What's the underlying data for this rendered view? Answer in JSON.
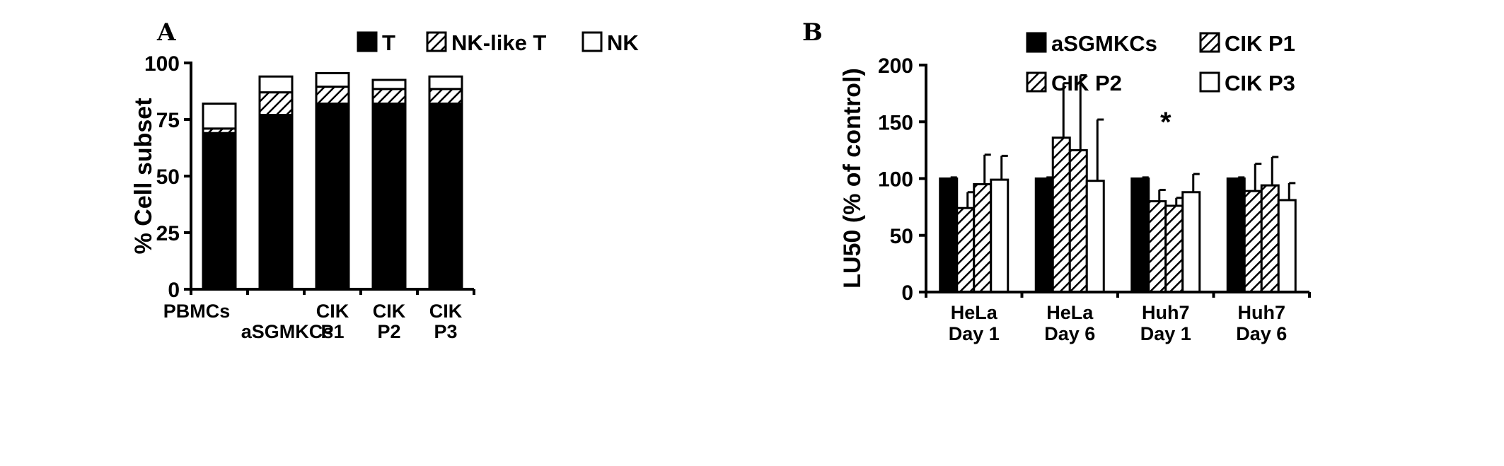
{
  "panels": {
    "a": {
      "letter": "A"
    },
    "b": {
      "letter": "B"
    }
  },
  "legend_styles": [
    "solid",
    "hatch",
    "open",
    "hatch",
    "hatch",
    "open"
  ],
  "chart_data": [
    {
      "type": "bar",
      "stacked": true,
      "ylabel": "% Cell subset",
      "ylim": [
        0,
        100
      ],
      "yticks": [
        0,
        25,
        50,
        75,
        100
      ],
      "categories": [
        {
          "lines": [
            "PBMCs"
          ]
        },
        {
          "lines": [
            "aSGMKCs"
          ]
        },
        {
          "lines": [
            "CIK",
            "P1"
          ]
        },
        {
          "lines": [
            "CIK",
            "P2"
          ]
        },
        {
          "lines": [
            "CIK",
            "P3"
          ]
        }
      ],
      "series": [
        {
          "name": "T",
          "fill": "solid",
          "values": [
            69,
            77,
            82,
            82,
            82
          ]
        },
        {
          "name": "NK-like T",
          "fill": "hatch",
          "values": [
            2,
            10,
            7.5,
            6.5,
            6.5
          ]
        },
        {
          "name": "NK",
          "fill": "open",
          "values": [
            11,
            7,
            6,
            4,
            5.5
          ]
        }
      ],
      "legend": "top-right"
    },
    {
      "type": "bar",
      "ylabel": "LU50 (% of control)",
      "ylim": [
        0,
        200
      ],
      "yticks": [
        0,
        50,
        100,
        150,
        200
      ],
      "categories": [
        {
          "lines": [
            "HeLa",
            "Day 1"
          ]
        },
        {
          "lines": [
            "HeLa",
            "Day 6"
          ]
        },
        {
          "lines": [
            "Huh7",
            "Day 1"
          ]
        },
        {
          "lines": [
            "Huh7",
            "Day 6"
          ]
        }
      ],
      "series": [
        {
          "name": "aSGMKCs",
          "fill": "solid",
          "values": [
            100,
            100,
            100,
            100
          ],
          "errors": [
            1,
            1,
            1,
            1
          ]
        },
        {
          "name": "CIK P1",
          "fill": "hatch",
          "values": [
            74,
            136,
            80,
            89
          ],
          "errors": [
            14,
            48,
            10,
            24
          ]
        },
        {
          "name": "CIK P2",
          "fill": "hatch",
          "values": [
            95,
            125,
            76,
            94
          ],
          "errors": [
            26,
            66,
            7,
            25
          ]
        },
        {
          "name": "CIK P3",
          "fill": "open",
          "values": [
            99,
            98,
            88,
            81
          ],
          "errors": [
            21,
            54,
            16,
            15
          ]
        }
      ],
      "annotation": {
        "text": "*",
        "category": 2
      },
      "legend": "top"
    }
  ]
}
